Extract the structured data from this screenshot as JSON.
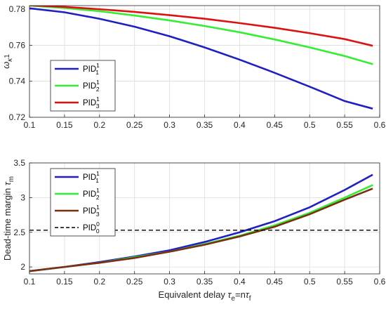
{
  "chart_data": [
    {
      "type": "line",
      "title": "",
      "xlabel": "",
      "ylabel": {
        "base": "ω",
        "sub": "κ",
        "rest": "1"
      },
      "xlim": [
        0.1,
        0.6
      ],
      "ylim": [
        0.72,
        0.782
      ],
      "xticks": [
        "0.1",
        "0.15",
        "0.2",
        "0.25",
        "0.3",
        "0.35",
        "0.4",
        "0.45",
        "0.5",
        "0.55",
        "0.6"
      ],
      "yticks": [
        "0.72",
        "0.74",
        "0.76",
        "0.78"
      ],
      "grid": true,
      "legend_position": "lower-left",
      "x": [
        0.1,
        0.15,
        0.2,
        0.25,
        0.3,
        0.35,
        0.4,
        0.45,
        0.5,
        0.55,
        0.59
      ],
      "series": [
        {
          "name": {
            "base": "PID",
            "sup": "1",
            "sub": "1"
          },
          "color": "#1f1fc2",
          "values": [
            0.7805,
            0.7783,
            0.7747,
            0.7703,
            0.765,
            0.7588,
            0.752,
            0.7447,
            0.737,
            0.729,
            0.7248
          ]
        },
        {
          "name": {
            "base": "PID",
            "sup": "1",
            "sub": "2"
          },
          "color": "#33ee33",
          "values": [
            0.782,
            0.7807,
            0.7789,
            0.7765,
            0.7738,
            0.7707,
            0.7672,
            0.7632,
            0.7588,
            0.754,
            0.7495
          ]
        },
        {
          "name": {
            "base": "PID",
            "sup": "1",
            "sub": "3"
          },
          "color": "#dd1111",
          "values": [
            0.7822,
            0.7813,
            0.78,
            0.7785,
            0.7767,
            0.7747,
            0.7723,
            0.7697,
            0.7667,
            0.7634,
            0.7597
          ]
        }
      ]
    },
    {
      "type": "line",
      "title": "",
      "xlabel": {
        "text": "Equivalent delay ",
        "sym": "τ",
        "sub1": "e",
        "mid": "=n",
        "sym2": "τ",
        "sub2": "f"
      },
      "ylabel": {
        "text": "Dead-time margin ",
        "sym": "τ",
        "sub": "m"
      },
      "xlim": [
        0.1,
        0.6
      ],
      "ylim": [
        1.9,
        3.5
      ],
      "xticks": [
        "0.1",
        "0.15",
        "0.2",
        "0.25",
        "0.3",
        "0.35",
        "0.4",
        "0.45",
        "0.5",
        "0.55",
        "0.6"
      ],
      "yticks": [
        "2",
        "2.5",
        "3",
        "3.5"
      ],
      "grid": true,
      "legend_position": "top-left",
      "x": [
        0.1,
        0.15,
        0.2,
        0.25,
        0.3,
        0.35,
        0.4,
        0.45,
        0.5,
        0.55,
        0.59
      ],
      "series": [
        {
          "name": {
            "base": "PID",
            "sup": "1",
            "sub": "1"
          },
          "color": "#1f1fc2",
          "values": [
            1.94,
            2.0,
            2.07,
            2.15,
            2.24,
            2.36,
            2.5,
            2.66,
            2.86,
            3.11,
            3.33
          ]
        },
        {
          "name": {
            "base": "PID",
            "sup": "1",
            "sub": "2"
          },
          "color": "#33ee33",
          "values": [
            1.94,
            2.0,
            2.06,
            2.14,
            2.22,
            2.33,
            2.45,
            2.6,
            2.78,
            3.0,
            3.18
          ]
        },
        {
          "name": {
            "base": "PID",
            "sup": "1",
            "sub": "3"
          },
          "color": "#7b2f12",
          "values": [
            1.94,
            2.0,
            2.06,
            2.13,
            2.22,
            2.32,
            2.44,
            2.58,
            2.76,
            2.97,
            3.13
          ]
        },
        {
          "name": {
            "base": "PID",
            "sup": "0",
            "sub": "0"
          },
          "color": "#000000",
          "dashed": true,
          "values": [
            2.53,
            2.53,
            2.53,
            2.53,
            2.53,
            2.53,
            2.53,
            2.53,
            2.53,
            2.53,
            2.53
          ]
        }
      ]
    }
  ]
}
